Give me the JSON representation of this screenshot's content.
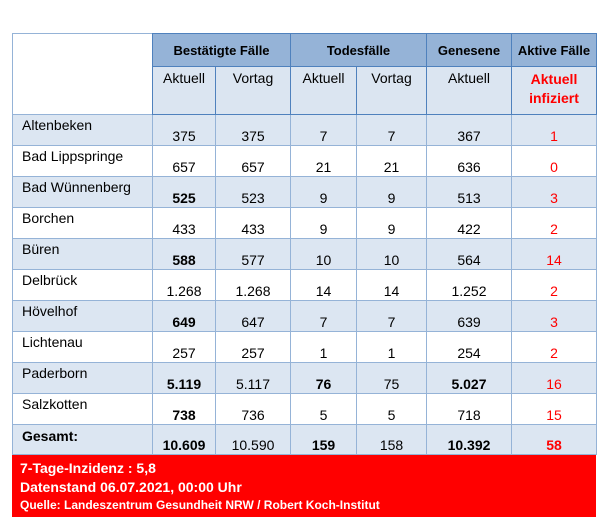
{
  "header": {
    "groups": [
      "Bestätigte Fälle",
      "Todesfälle",
      "Genesene",
      "Aktive Fälle"
    ],
    "sub": [
      "Aktuell",
      "Vortag",
      "Aktuell",
      "Vortag",
      "Aktuell"
    ],
    "active_sub": [
      "Aktuell",
      "infiziert"
    ]
  },
  "rows": [
    {
      "name": "Altenbeken",
      "ba": "375",
      "bv": "375",
      "ta": "7",
      "tv": "7",
      "ga": "367",
      "ak": "1",
      "bold": []
    },
    {
      "name": "Bad Lippspringe",
      "ba": "657",
      "bv": "657",
      "ta": "21",
      "tv": "21",
      "ga": "636",
      "ak": "0",
      "bold": []
    },
    {
      "name": "Bad Wünnenberg",
      "ba": "525",
      "bv": "523",
      "ta": "9",
      "tv": "9",
      "ga": "513",
      "ak": "3",
      "bold": [
        "ba"
      ]
    },
    {
      "name": "Borchen",
      "ba": "433",
      "bv": "433",
      "ta": "9",
      "tv": "9",
      "ga": "422",
      "ak": "2",
      "bold": []
    },
    {
      "name": "Büren",
      "ba": "588",
      "bv": "577",
      "ta": "10",
      "tv": "10",
      "ga": "564",
      "ak": "14",
      "bold": [
        "ba"
      ]
    },
    {
      "name": "Delbrück",
      "ba": "1.268",
      "bv": "1.268",
      "ta": "14",
      "tv": "14",
      "ga": "1.252",
      "ak": "2",
      "bold": []
    },
    {
      "name": "Hövelhof",
      "ba": "649",
      "bv": "647",
      "ta": "7",
      "tv": "7",
      "ga": "639",
      "ak": "3",
      "bold": [
        "ba"
      ]
    },
    {
      "name": "Lichtenau",
      "ba": "257",
      "bv": "257",
      "ta": "1",
      "tv": "1",
      "ga": "254",
      "ak": "2",
      "bold": []
    },
    {
      "name": "Paderborn",
      "ba": "5.119",
      "bv": "5.117",
      "ta": "76",
      "tv": "75",
      "ga": "5.027",
      "ak": "16",
      "bold": [
        "ba",
        "ta",
        "ga"
      ]
    },
    {
      "name": "Salzkotten",
      "ba": "738",
      "bv": "736",
      "ta": "5",
      "tv": "5",
      "ga": "718",
      "ak": "15",
      "bold": [
        "ba"
      ]
    }
  ],
  "total": {
    "name": "Gesamt:",
    "ba": "10.609",
    "bv": "10.590",
    "ta": "159",
    "tv": "158",
    "ga": "10.392",
    "ak": "58"
  },
  "footer": {
    "line1": "7-Tage-Inzidenz : 5,8",
    "line2": "Datenstand 06.07.2021, 00:00 Uhr",
    "line3": "Quelle: Landeszentrum Gesundheit NRW / Robert Koch-Institut"
  },
  "colors": {
    "header": "#95b3d7",
    "subheader": "#dbe5f1",
    "band": "#dce6f2",
    "accent": "#ff0000"
  }
}
